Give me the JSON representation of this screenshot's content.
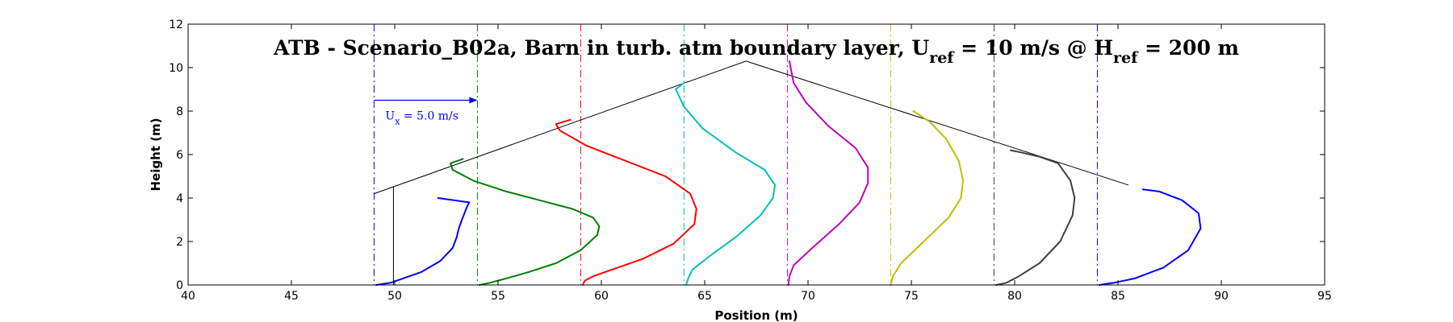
{
  "chart_data": {
    "type": "line",
    "title": "ATB - Scenario_B02a, Barn in turb. atm boundary layer, U_ref = 10 m/s @ H_ref = 200 m",
    "title_parts": {
      "prefix": "ATB - Scenario_B02a, Barn in turb. atm boundary layer, U",
      "sub1": "ref",
      "mid": " = 10 m/s @ H",
      "sub2": "ref",
      "suffix": " = 200 m"
    },
    "xlabel": "Position (m)",
    "ylabel": "Height (m)",
    "xlim": [
      40,
      95
    ],
    "ylim": [
      0,
      12
    ],
    "x_ticks": [
      40,
      45,
      50,
      55,
      60,
      65,
      70,
      75,
      80,
      85,
      90,
      95
    ],
    "y_ticks": [
      0,
      2,
      4,
      6,
      8,
      10,
      12
    ],
    "grid": false,
    "scale_arrow": {
      "label_main": "U",
      "label_sub": "x",
      "label_rest": " = 5.0 m/s",
      "x_start": 49,
      "x_end": 54,
      "y": 8.5,
      "color": "#0000ff"
    },
    "barn_outline": {
      "color": "#000000",
      "x": [
        49,
        49,
        67,
        85
      ],
      "y": [
        0,
        4.5,
        10.4,
        4.6
      ],
      "roof_segments": [
        {
          "x": [
            49,
            67
          ],
          "y": [
            4.2,
            10.3
          ]
        },
        {
          "x": [
            67,
            85.5
          ],
          "y": [
            10.3,
            4.6
          ]
        }
      ]
    },
    "series": [
      {
        "reference_x": 49,
        "color": "#0000ff",
        "x": [
          49.1,
          49.8,
          50.4,
          51.3,
          52.2,
          52.8,
          53.0,
          53.1,
          53.25,
          53.5,
          53.6,
          52.1
        ],
        "y": [
          0.0,
          0.1,
          0.3,
          0.6,
          1.1,
          1.7,
          2.2,
          2.6,
          3.0,
          3.6,
          3.8,
          4.0
        ]
      },
      {
        "reference_x": 54,
        "color": "#008000",
        "x": [
          54.1,
          54.6,
          55.4,
          56.5,
          57.8,
          59.0,
          59.8,
          59.9,
          59.6,
          58.6,
          57.0,
          55.4,
          53.8,
          52.8,
          52.7,
          53.3
        ],
        "y": [
          0.0,
          0.1,
          0.3,
          0.6,
          1.0,
          1.6,
          2.3,
          2.7,
          3.1,
          3.5,
          3.9,
          4.3,
          4.8,
          5.3,
          5.6,
          5.8
        ]
      },
      {
        "reference_x": 59,
        "color": "#ff0000",
        "x": [
          59.1,
          59.2,
          59.6,
          60.5,
          62.0,
          63.5,
          64.5,
          64.6,
          64.3,
          63.1,
          61.2,
          59.3,
          58.0,
          57.8,
          58.5
        ],
        "y": [
          0.0,
          0.2,
          0.4,
          0.7,
          1.2,
          1.9,
          2.8,
          3.5,
          4.2,
          5.0,
          5.7,
          6.4,
          7.1,
          7.4,
          7.6
        ]
      },
      {
        "reference_x": 64,
        "color": "#00bfbf",
        "x": [
          64.1,
          64.2,
          64.4,
          65.2,
          66.5,
          67.7,
          68.3,
          68.4,
          67.9,
          66.5,
          64.9,
          64.0,
          63.6,
          64.0
        ],
        "y": [
          0.0,
          0.3,
          0.7,
          1.3,
          2.2,
          3.2,
          4.0,
          4.6,
          5.3,
          6.1,
          7.2,
          8.2,
          9.0,
          9.3
        ]
      },
      {
        "reference_x": 69,
        "color": "#bf00bf",
        "x": [
          69.05,
          69.1,
          69.3,
          70.2,
          71.5,
          72.5,
          72.9,
          72.9,
          72.3,
          71.0,
          69.9,
          69.3,
          69.1
        ],
        "y": [
          0.0,
          0.4,
          0.9,
          1.7,
          2.8,
          3.8,
          4.7,
          5.4,
          6.3,
          7.3,
          8.4,
          9.3,
          10.3
        ]
      },
      {
        "reference_x": 74,
        "color": "#bfbf00",
        "x": [
          74.0,
          74.1,
          74.5,
          75.6,
          76.8,
          77.4,
          77.5,
          77.3,
          76.7,
          75.9,
          75.1
        ],
        "y": [
          0.0,
          0.4,
          1.0,
          2.0,
          3.1,
          4.0,
          4.8,
          5.7,
          6.7,
          7.5,
          8.0
        ]
      },
      {
        "reference_x": 79,
        "color": "#404040",
        "x": [
          79.1,
          79.6,
          80.2,
          81.2,
          82.2,
          82.8,
          82.9,
          82.7,
          82.1,
          81.2,
          80.3,
          79.8
        ],
        "y": [
          0.0,
          0.1,
          0.4,
          1.0,
          2.0,
          3.2,
          4.0,
          4.8,
          5.6,
          5.9,
          6.1,
          6.2
        ]
      },
      {
        "reference_x": 84,
        "color": "#0000ff",
        "x": [
          84.1,
          84.8,
          85.8,
          87.2,
          88.4,
          89.0,
          88.9,
          88.1,
          87.0,
          86.2
        ],
        "y": [
          0.0,
          0.1,
          0.3,
          0.8,
          1.6,
          2.6,
          3.3,
          3.9,
          4.3,
          4.4
        ]
      }
    ]
  }
}
